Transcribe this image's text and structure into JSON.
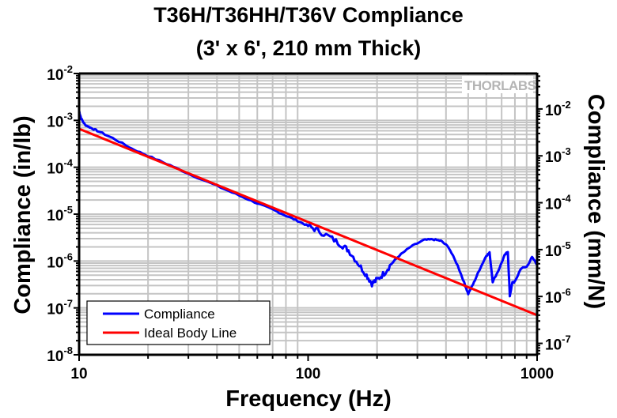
{
  "chart_data": {
    "type": "line",
    "title": [
      "T36H/T36HH/T36V Compliance",
      "(3' x 6', 210 mm Thick)"
    ],
    "xlabel": "Frequency (Hz)",
    "ylabel": "Compliance (in/lb)",
    "ylabel_right": "Compliance (mm/N)",
    "xscale": "log",
    "yscale": "log",
    "xlim": [
      10,
      1000
    ],
    "ylim": [
      1e-08,
      0.01
    ],
    "ylim_right_conversion_mm_per_N_per_in_per_lb": 5.71,
    "grid": true,
    "x_ticks": [
      "10",
      "100",
      "1000"
    ],
    "y_ticks": [
      {
        "base": "10",
        "exp": "-2"
      },
      {
        "base": "10",
        "exp": "-3"
      },
      {
        "base": "10",
        "exp": "-4"
      },
      {
        "base": "10",
        "exp": "-5"
      },
      {
        "base": "10",
        "exp": "-6"
      },
      {
        "base": "10",
        "exp": "-7"
      },
      {
        "base": "10",
        "exp": "-8"
      }
    ],
    "y_ticks_right": [
      {
        "base": "10",
        "exp": "-2"
      },
      {
        "base": "10",
        "exp": "-3"
      },
      {
        "base": "10",
        "exp": "-4"
      },
      {
        "base": "10",
        "exp": "-5"
      },
      {
        "base": "10",
        "exp": "-6"
      },
      {
        "base": "10",
        "exp": "-7"
      }
    ],
    "legend_placement": "bottom-left",
    "series": [
      {
        "name": "Compliance",
        "color": "#0000ff",
        "points": [
          [
            10,
            0.0016
          ],
          [
            10.2,
            0.0011
          ],
          [
            10.6,
            0.00081
          ],
          [
            11.2,
            0.0007
          ],
          [
            12,
            0.0006
          ],
          [
            14,
            0.00042
          ],
          [
            17,
            0.00025
          ],
          [
            20,
            0.000175
          ],
          [
            25,
            0.00011
          ],
          [
            30,
            7.3e-05
          ],
          [
            40,
            4e-05
          ],
          [
            50,
            2.5e-05
          ],
          [
            60,
            1.7e-05
          ],
          [
            70,
            1.25e-05
          ],
          [
            80,
            9.3e-06
          ],
          [
            90,
            7.2e-06
          ],
          [
            100,
            5.6e-06
          ],
          [
            110,
            4.5e-06
          ],
          [
            125,
            3.2e-06
          ],
          [
            140,
            2.2e-06
          ],
          [
            150,
            1.7e-06
          ],
          [
            165,
            9e-07
          ],
          [
            180,
            5e-07
          ],
          [
            190,
            3.3e-07
          ],
          [
            200,
            4e-07
          ],
          [
            215,
            5.5e-07
          ],
          [
            230,
            8.5e-07
          ],
          [
            250,
            1.3e-06
          ],
          [
            280,
            2e-06
          ],
          [
            320,
            2.8e-06
          ],
          [
            350,
            2.9e-06
          ],
          [
            380,
            2.7e-06
          ],
          [
            410,
            2e-06
          ],
          [
            450,
            8e-07
          ],
          [
            480,
            3.5e-07
          ],
          [
            500,
            2e-07
          ],
          [
            530,
            3.5e-07
          ],
          [
            560,
            6.5e-07
          ],
          [
            600,
            1.3e-06
          ],
          [
            620,
            1.5e-06
          ],
          [
            640,
            3.6e-07
          ],
          [
            680,
            6.5e-07
          ],
          [
            720,
            1.3e-06
          ],
          [
            745,
            1.6e-06
          ],
          [
            760,
            1.8e-07
          ],
          [
            780,
            3.5e-07
          ],
          [
            800,
            3.6e-07
          ],
          [
            850,
            7e-07
          ],
          [
            900,
            7.5e-07
          ],
          [
            950,
            1.2e-06
          ],
          [
            1000,
            8.5e-07
          ]
        ]
      },
      {
        "name": "Ideal Body Line",
        "color": "#ff0000",
        "points": [
          [
            10,
            0.00066
          ],
          [
            1000,
            7e-08
          ]
        ]
      }
    ]
  },
  "watermark": "THORLABS"
}
